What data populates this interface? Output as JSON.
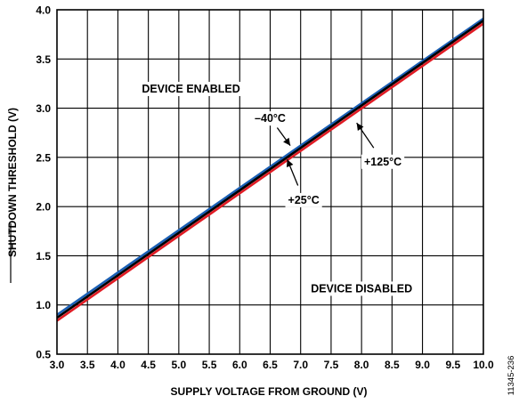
{
  "chart_data": {
    "type": "line",
    "xlabel": "SUPPLY VOLTAGE FROM GROUND (V)",
    "ylabel": "SHUTDOWN THRESHOLD (V)",
    "xlim": [
      3.0,
      10.0
    ],
    "ylim": [
      0.5,
      4.0
    ],
    "x_ticks": [
      "3.0",
      "3.5",
      "4.0",
      "4.5",
      "5.0",
      "5.5",
      "6.0",
      "6.5",
      "7.0",
      "7.5",
      "8.0",
      "8.5",
      "9.0",
      "9.5",
      "10.0"
    ],
    "y_ticks": [
      "0.5",
      "1.0",
      "1.5",
      "2.0",
      "2.5",
      "3.0",
      "3.5",
      "4.0"
    ],
    "grid": true,
    "series": [
      {
        "name": "–40°C",
        "color": "#1a5fb4",
        "x": [
          3.0,
          10.0
        ],
        "y": [
          0.9,
          3.91
        ]
      },
      {
        "name": "+25°C",
        "color": "#000000",
        "x": [
          3.0,
          10.0
        ],
        "y": [
          0.87,
          3.89
        ]
      },
      {
        "name": "+125°C",
        "color": "#e01b24",
        "x": [
          3.0,
          10.0
        ],
        "y": [
          0.84,
          3.86
        ]
      }
    ],
    "annotations": [
      {
        "text": "DEVICE ENABLED",
        "x": 5.2,
        "y": 3.2
      },
      {
        "text": "DEVICE DISABLED",
        "x": 8.0,
        "y": 1.17
      },
      {
        "text": "–40°C",
        "x": 6.5,
        "y": 2.9,
        "target_x": 6.83,
        "target_y": 2.62
      },
      {
        "text": "+25°C",
        "x": 7.05,
        "y": 2.07,
        "target_x": 6.78,
        "target_y": 2.48
      },
      {
        "text": "+125°C",
        "x": 8.35,
        "y": 2.46,
        "target_x": 7.92,
        "target_y": 2.85
      }
    ],
    "figure_id": "11345-236"
  }
}
